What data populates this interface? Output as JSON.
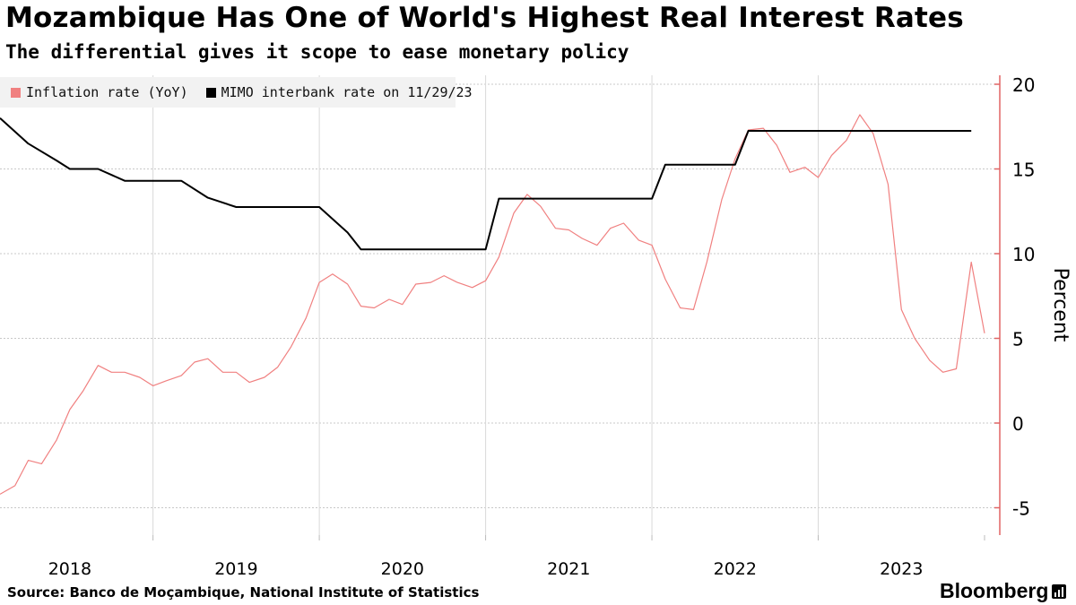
{
  "header": {
    "title": "Mozambique Has One of World's Highest Real Interest Rates",
    "subtitle": "The differential gives it scope to ease monetary policy"
  },
  "footer": {
    "source": "Source: Banco de Moçambique, National Institute of Statistics",
    "brand": "Bloomberg"
  },
  "colors": {
    "inflation": "#f08080",
    "mimo": "#000000",
    "axis": "#e06464",
    "grid": "#c8c8c8",
    "legend_bg": "#f2f2f2"
  },
  "chart_data": {
    "type": "line",
    "title": "Mozambique Has One of World's Highest Real Interest Rates",
    "xlabel": "",
    "ylabel": "Percent",
    "ylim": [
      -6.5,
      21
    ],
    "xlim": [
      2017.58,
      2023.56
    ],
    "grid": true,
    "y_axis_side": "right",
    "legend_position": "top-left",
    "yticks": [
      20,
      15,
      10,
      5,
      0,
      -5
    ],
    "ytick_labels": [
      "20",
      "15",
      "10",
      "5",
      "0",
      "-5"
    ],
    "xticks": [
      2018,
      2019,
      2020,
      2021,
      2022,
      2023
    ],
    "xtick_labels": [
      "2018",
      "2019",
      "2020",
      "2021",
      "2022",
      "2023"
    ],
    "year_gridlines": [
      2018.5,
      2019.5,
      2020.5,
      2021.5,
      2022.5
    ],
    "series": [
      {
        "name": "Inflation rate (YoY)",
        "color": "#f08080",
        "x": [
          2017.58,
          2017.67,
          2017.75,
          2017.83,
          2017.92,
          2018.0,
          2018.08,
          2018.17,
          2018.25,
          2018.33,
          2018.42,
          2018.5,
          2018.58,
          2018.67,
          2018.75,
          2018.83,
          2018.92,
          2019.0,
          2019.08,
          2019.17,
          2019.25,
          2019.33,
          2019.42,
          2019.5,
          2019.58,
          2019.67,
          2019.75,
          2019.83,
          2019.92,
          2020.0,
          2020.08,
          2020.17,
          2020.25,
          2020.33,
          2020.42,
          2020.5,
          2020.58,
          2020.67,
          2020.75,
          2020.83,
          2020.92,
          2021.0,
          2021.08,
          2021.17,
          2021.25,
          2021.33,
          2021.42,
          2021.5,
          2021.58,
          2021.67,
          2021.75,
          2021.83,
          2021.92,
          2022.0,
          2022.08,
          2022.17,
          2022.25,
          2022.33,
          2022.42,
          2022.5,
          2022.58,
          2022.67,
          2022.75,
          2022.83,
          2022.92,
          2023.0,
          2023.08,
          2023.17,
          2023.25,
          2023.33,
          2023.42,
          2023.5
        ],
        "values": [
          -4.2,
          -3.7,
          -2.2,
          -2.4,
          -1.0,
          0.8,
          1.9,
          3.4,
          3.0,
          3.0,
          2.7,
          2.2,
          2.5,
          2.8,
          3.6,
          3.8,
          3.0,
          3.0,
          2.4,
          2.7,
          3.3,
          4.5,
          6.2,
          8.3,
          8.8,
          8.2,
          6.9,
          6.8,
          7.3,
          7.0,
          8.2,
          8.3,
          8.7,
          8.3,
          8.0,
          8.4,
          9.8,
          12.4,
          13.5,
          12.8,
          11.5,
          11.4,
          10.9,
          10.5,
          11.5,
          11.8,
          10.8,
          10.5,
          8.5,
          6.8,
          6.7,
          9.5,
          13.2,
          15.6,
          17.3,
          17.4,
          16.4,
          14.8,
          15.1,
          14.5,
          15.8,
          16.7,
          18.2,
          17.1,
          14.1,
          6.7,
          5.0,
          3.7,
          3.0,
          3.2,
          9.5,
          5.3
        ]
      },
      {
        "name": "MIMO interbank rate on 11/29/23",
        "color": "#000000",
        "x": [
          2017.58,
          2017.75,
          2017.92,
          2018.0,
          2018.17,
          2018.33,
          2018.5,
          2018.67,
          2018.83,
          2019.0,
          2019.17,
          2019.33,
          2019.5,
          2019.67,
          2019.75,
          2019.92,
          2020.0,
          2020.17,
          2020.33,
          2020.5,
          2020.58,
          2020.75,
          2020.92,
          2021.0,
          2021.17,
          2021.33,
          2021.5,
          2021.58,
          2021.75,
          2021.92,
          2022.0,
          2022.08,
          2022.25,
          2022.33,
          2022.42,
          2022.58,
          2022.67,
          2022.75,
          2022.83,
          2022.92,
          2023.0,
          2023.08,
          2023.17,
          2023.25,
          2023.33,
          2023.42
        ],
        "values": [
          18.0,
          16.5,
          15.5,
          15.0,
          15.0,
          14.3,
          14.3,
          14.3,
          13.3,
          12.75,
          12.75,
          12.75,
          12.75,
          11.25,
          10.25,
          10.25,
          10.25,
          10.25,
          10.25,
          10.25,
          13.25,
          13.25,
          13.25,
          13.25,
          13.25,
          13.25,
          13.25,
          15.25,
          15.25,
          15.25,
          15.25,
          17.25,
          17.25,
          17.25,
          17.25,
          17.25,
          17.25,
          17.25,
          17.25,
          17.25,
          17.25,
          17.25,
          17.25,
          17.25,
          17.25,
          17.25
        ]
      }
    ]
  }
}
